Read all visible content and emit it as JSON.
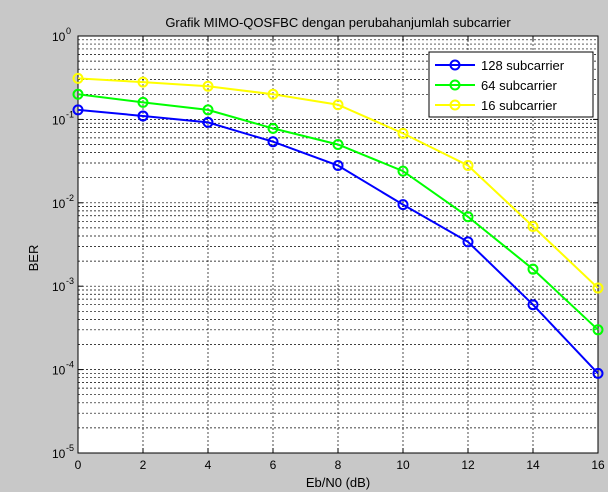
{
  "chart_data": {
    "type": "line",
    "title": "Grafik MIMO-QOSFBC dengan perubahanjumlah subcarrier",
    "xlabel": "Eb/N0 (dB)",
    "ylabel": "BER",
    "xlim": [
      0,
      16
    ],
    "ylim": [
      1e-05,
      1
    ],
    "yscale": "log",
    "grid": true,
    "legend_position": "top-right",
    "x_ticks": [
      "0",
      "2",
      "4",
      "6",
      "8",
      "10",
      "12",
      "14",
      "16"
    ],
    "y_ticks": [
      {
        "base": "10",
        "exp": "0"
      },
      {
        "base": "10",
        "exp": "-1"
      },
      {
        "base": "10",
        "exp": "-2"
      },
      {
        "base": "10",
        "exp": "-3"
      },
      {
        "base": "10",
        "exp": "-4"
      },
      {
        "base": "10",
        "exp": "-5"
      }
    ],
    "x": [
      0,
      2,
      4,
      6,
      8,
      10,
      12,
      14,
      16
    ],
    "series": [
      {
        "name": "128 subcarrier",
        "color": "#0000ff",
        "marker": "circle",
        "values": [
          0.13,
          0.11,
          0.092,
          0.054,
          0.028,
          0.0095,
          0.0034,
          0.0006,
          9e-05
        ]
      },
      {
        "name": "64 subcarrier",
        "color": "#00ff00",
        "marker": "circle",
        "values": [
          0.2,
          0.16,
          0.13,
          0.078,
          0.05,
          0.024,
          0.0068,
          0.0016,
          0.0003
        ]
      },
      {
        "name": "16 subcarrier",
        "color": "#ffff00",
        "marker": "circle",
        "values": [
          0.31,
          0.28,
          0.25,
          0.2,
          0.15,
          0.068,
          0.028,
          0.0052,
          0.00095
        ]
      }
    ]
  },
  "colors": {
    "frame_gray": "#c8c8c8",
    "plot_background": "#ffffff",
    "grid": "#000000"
  }
}
